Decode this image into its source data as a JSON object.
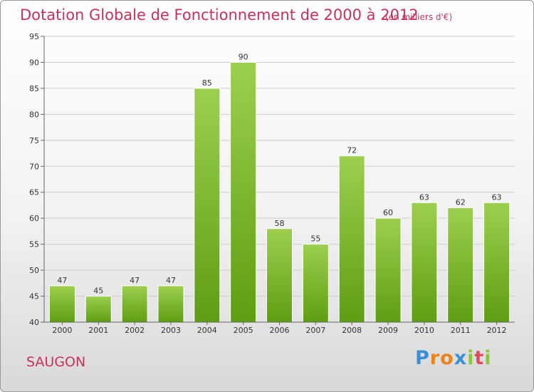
{
  "chart_data": {
    "type": "bar",
    "title": "Dotation Globale de Fonctionnement de 2000 à 2012",
    "subtitle": "(en milliers d'€)",
    "categories": [
      "2000",
      "2001",
      "2002",
      "2003",
      "2004",
      "2005",
      "2006",
      "2007",
      "2008",
      "2009",
      "2010",
      "2011",
      "2012"
    ],
    "values": [
      47,
      45,
      47,
      47,
      85,
      90,
      58,
      55,
      72,
      60,
      63,
      62,
      63
    ],
    "ylim": [
      40,
      95
    ],
    "yticks": [
      40,
      45,
      50,
      55,
      60,
      65,
      70,
      75,
      80,
      85,
      90,
      95
    ],
    "grid": true,
    "bar_color_top": "#9dcf4e",
    "bar_color_bottom": "#5e9e12"
  },
  "place_name": "SAUGON",
  "logo": {
    "letters": [
      "P",
      "r",
      "o",
      "x",
      "i",
      "t",
      "i"
    ],
    "colors": [
      "#3a8fd6",
      "#e8831e",
      "#e8831e",
      "#3a8fd6",
      "#8bc43f",
      "#e84a5f",
      "#8bc43f"
    ]
  }
}
